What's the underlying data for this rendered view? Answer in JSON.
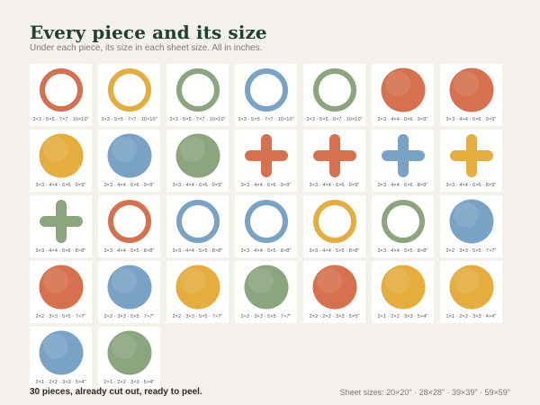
{
  "header": {
    "title": "Every piece and its size",
    "subtitle": "Under each piece, its size in each sheet size. All in inches."
  },
  "colors": {
    "red": "#d5714f",
    "yellow": "#e4ad3d",
    "green": "#8ba57e",
    "blue": "#7aa2c4"
  },
  "pieces": [
    {
      "shape": "ring",
      "color": "red",
      "sizes": "3×3 · 5×5 · 7×7 · 10×10\""
    },
    {
      "shape": "ring",
      "color": "yellow",
      "sizes": "3×3 · 5×5 · 7×7 · 10×10\""
    },
    {
      "shape": "ring",
      "color": "green",
      "sizes": "3×3 · 5×5 · 7×7 · 10×10\""
    },
    {
      "shape": "ring",
      "color": "blue",
      "sizes": "3×3 · 5×5 · 7×7 · 10×10\""
    },
    {
      "shape": "ring",
      "color": "green",
      "sizes": "3×3 · 5×5 · 6×7 · 10×10\""
    },
    {
      "shape": "circle",
      "color": "red",
      "sizes": "3×3 · 4×4 · 6×6 · 9×9\""
    },
    {
      "shape": "circle",
      "color": "red",
      "sizes": "3×3 · 4×4 · 6×6 · 9×9\""
    },
    {
      "shape": "circle",
      "color": "yellow",
      "sizes": "3×3 · 4×4 · 6×6 · 9×9\""
    },
    {
      "shape": "circle",
      "color": "blue",
      "sizes": "3×3 · 4×4 · 6×6 · 9×9\""
    },
    {
      "shape": "circle",
      "color": "green",
      "sizes": "3×3 · 4×4 · 6×6 · 9×9\""
    },
    {
      "shape": "plus",
      "color": "red",
      "sizes": "3×3 · 4×4 · 6×6 · 9×9\""
    },
    {
      "shape": "plus",
      "color": "red",
      "sizes": "3×3 · 4×4 · 6×6 · 9×9\""
    },
    {
      "shape": "plus",
      "color": "blue",
      "sizes": "3×3 · 4×4 · 6×6 · 8×9\""
    },
    {
      "shape": "plus",
      "color": "yellow",
      "sizes": "3×3 · 4×4 · 6×6 · 8×9\""
    },
    {
      "shape": "plus",
      "color": "green",
      "sizes": "3×3 · 4×4 · 6×6 · 8×8\""
    },
    {
      "shape": "ring",
      "color": "red",
      "sizes": "3×3 · 4×4 · 5×5 · 8×8\""
    },
    {
      "shape": "ring",
      "color": "blue",
      "sizes": "3×3 · 4×4 · 5×5 · 8×8\""
    },
    {
      "shape": "ring",
      "color": "blue",
      "sizes": "3×3 · 4×4 · 5×5 · 8×8\""
    },
    {
      "shape": "ring",
      "color": "yellow",
      "sizes": "3×3 · 4×4 · 5×5 · 8×8\""
    },
    {
      "shape": "ring",
      "color": "green",
      "sizes": "3×3 · 4×4 · 5×5 · 8×8\""
    },
    {
      "shape": "circle",
      "color": "blue",
      "sizes": "2×2 · 3×3 · 5×5 · 7×7\""
    },
    {
      "shape": "circle",
      "color": "red",
      "sizes": "2×2 · 3×3 · 5×5 · 7×7\""
    },
    {
      "shape": "circle",
      "color": "blue",
      "sizes": "2×2 · 3×3 · 5×5 · 7×7\""
    },
    {
      "shape": "circle",
      "color": "yellow",
      "sizes": "2×2 · 3×3 · 5×5 · 7×7\""
    },
    {
      "shape": "circle",
      "color": "green",
      "sizes": "2×2 · 3×3 · 5×5 · 7×7\""
    },
    {
      "shape": "circle",
      "color": "red",
      "sizes": "2×2 · 2×2 · 3×3 · 5×5\""
    },
    {
      "shape": "circle",
      "color": "yellow",
      "sizes": "2×1 · 2×2 · 3×3 · 5×4\""
    },
    {
      "shape": "circle",
      "color": "yellow",
      "sizes": "1×1 · 2×2 · 3×3 · 4×4\""
    },
    {
      "shape": "circle",
      "color": "blue",
      "sizes": "2×1 · 2×2 · 3×3 · 5×4\""
    },
    {
      "shape": "circle",
      "color": "green",
      "sizes": "2×1 · 2×2 · 3×3 · 5×4\""
    }
  ],
  "footer": {
    "summary": "30 pieces, already cut out, ready to peel.",
    "sheet_sizes": "Sheet sizes: 20×20\"  ·  28×28\"  ·  39×39\"  ·  59×59\""
  }
}
